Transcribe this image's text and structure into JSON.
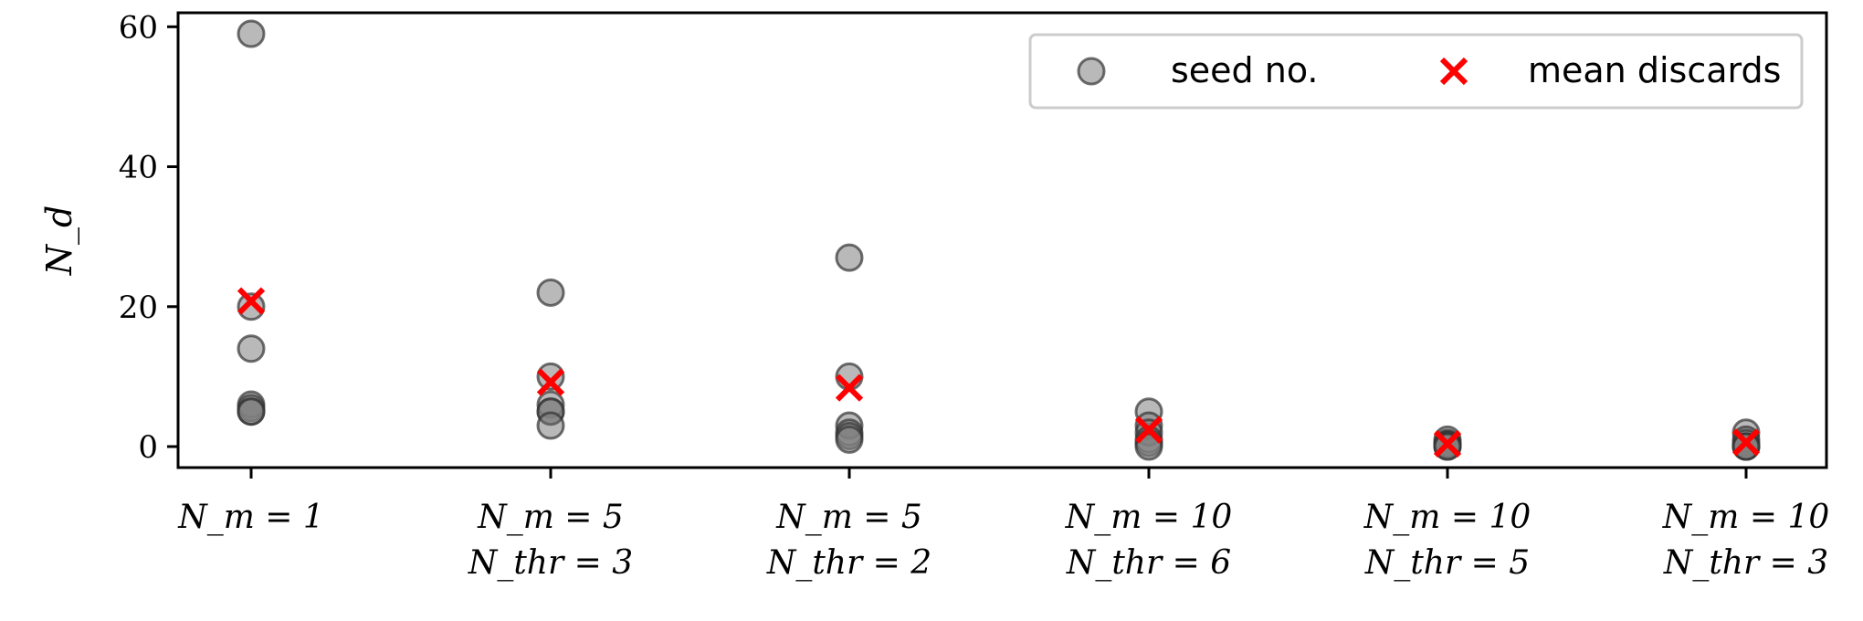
{
  "chart_data": {
    "type": "scatter",
    "ylabel": "N_d",
    "ylim": [
      -3,
      62
    ],
    "yticks": [
      0,
      20,
      40,
      60
    ],
    "ytick_labels": [
      "0",
      "20",
      "40",
      "60"
    ],
    "grid": false,
    "legend_position": "top-right",
    "categories": [
      [
        "N_m = 1"
      ],
      [
        "N_m = 5",
        "N_thr = 3"
      ],
      [
        "N_m = 5",
        "N_thr = 2"
      ],
      [
        "N_m = 10",
        "N_thr = 6"
      ],
      [
        "N_m = 10",
        "N_thr = 5"
      ],
      [
        "N_m = 10",
        "N_thr = 3"
      ]
    ],
    "series": [
      {
        "name": "seed no.",
        "marker": "circle",
        "color": "#808080",
        "values": [
          [
            59,
            20,
            14,
            6,
            5.5,
            5,
            5
          ],
          [
            22,
            10,
            6,
            5,
            5,
            3
          ],
          [
            27,
            10,
            3,
            2,
            1.5,
            1
          ],
          [
            5,
            3,
            2,
            1,
            0.5,
            0
          ],
          [
            1,
            0.5,
            0.3,
            0.2,
            0,
            0
          ],
          [
            2,
            1,
            0.5,
            0,
            0,
            0
          ]
        ]
      },
      {
        "name": "mean discards",
        "marker": "x",
        "color": "#ff0000",
        "values": [
          20.8,
          9.2,
          8.4,
          2.4,
          0.4,
          0.6
        ]
      }
    ]
  }
}
